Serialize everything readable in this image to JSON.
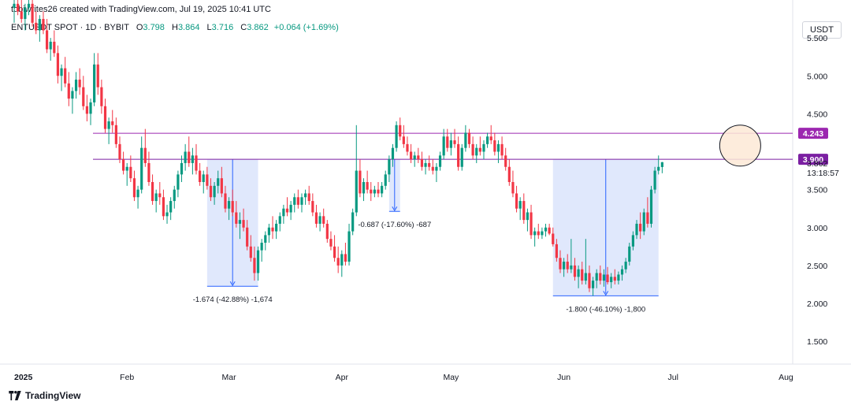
{
  "header": {
    "credit": "tobiwrites26 created with TradingView.com, Jul 19, 2025 10:41 UTC",
    "symbol": "ENTUSDT SPOT · 1D · BYBIT",
    "open_label": "O",
    "open": "3.798",
    "high_label": "H",
    "high": "3.864",
    "low_label": "L",
    "low": "3.716",
    "close_label": "C",
    "close": "3.862",
    "change": "+0.064 (+1.69%)",
    "currency": "USDT"
  },
  "brand": {
    "name": "TradingView",
    "logo_icon": "tradingview-logo-icon"
  },
  "colors": {
    "up": "#089981",
    "down": "#f23645",
    "level": "#9c27b0",
    "range_fill": "#dbe4fb",
    "range_line": "#2962ff",
    "highlight": "#fde9d6"
  },
  "chart_data": {
    "type": "candlestick",
    "ylim": [
      1.2,
      6.0
    ],
    "yticks": [
      "5.500",
      "5.000",
      "4.500",
      "3.500",
      "3.000",
      "2.500",
      "2.000",
      "1.500"
    ],
    "xticks": [
      "2025",
      "Feb",
      "Mar",
      "Apr",
      "May",
      "Jun",
      "Jul",
      "Aug"
    ],
    "horizontal_levels": [
      {
        "value": 4.243,
        "label": "4.243"
      },
      {
        "value": 3.9,
        "label": "3.900"
      }
    ],
    "last_price": {
      "value": 3.862,
      "label": "3.862",
      "countdown": "13:18:57"
    },
    "measurements": [
      {
        "label": "-1.674 (-42.88%) -1,674",
        "from": 3.9,
        "to": 2.226,
        "start": "Feb 23",
        "end": "Mar 9"
      },
      {
        "label": "-0.687 (-17.60%) -687",
        "from": 3.9,
        "to": 3.213,
        "start": "Apr 14",
        "end": "Apr 17"
      },
      {
        "label": "-1.800 (-46.10%) -1,800",
        "from": 3.9,
        "to": 2.1,
        "start": "May 29",
        "end": "Jun 27"
      }
    ],
    "highlight_circle": {
      "date": "Jul 19",
      "value": 4.08
    },
    "candles_ohlc": [
      [
        5.9,
        6.05,
        5.7,
        5.95
      ],
      [
        5.95,
        6.1,
        5.8,
        5.85
      ],
      [
        5.85,
        6.0,
        5.7,
        5.75
      ],
      [
        5.75,
        5.95,
        5.6,
        5.9
      ],
      [
        5.9,
        6.05,
        5.8,
        5.95
      ],
      [
        5.95,
        6.05,
        5.65,
        5.7
      ],
      [
        5.7,
        5.85,
        5.55,
        5.6
      ],
      [
        5.6,
        5.8,
        5.45,
        5.75
      ],
      [
        5.75,
        5.85,
        5.55,
        5.6
      ],
      [
        5.6,
        5.75,
        5.3,
        5.35
      ],
      [
        5.35,
        5.5,
        5.2,
        5.45
      ],
      [
        5.45,
        5.6,
        5.25,
        5.3
      ],
      [
        5.3,
        5.4,
        4.9,
        5.0
      ],
      [
        5.0,
        5.15,
        4.8,
        5.1
      ],
      [
        5.1,
        5.25,
        4.85,
        4.9
      ],
      [
        4.9,
        5.05,
        4.6,
        4.7
      ],
      [
        4.7,
        4.85,
        4.5,
        4.8
      ],
      [
        4.8,
        5.05,
        4.7,
        4.95
      ],
      [
        4.95,
        5.1,
        4.75,
        4.85
      ],
      [
        4.85,
        5.0,
        4.55,
        4.6
      ],
      [
        4.6,
        4.75,
        4.4,
        4.5
      ],
      [
        4.5,
        4.7,
        4.35,
        4.65
      ],
      [
        4.65,
        5.3,
        4.6,
        5.15
      ],
      [
        5.15,
        5.3,
        4.75,
        4.85
      ],
      [
        4.85,
        4.95,
        4.5,
        4.6
      ],
      [
        4.6,
        4.7,
        4.25,
        4.3
      ],
      [
        4.3,
        4.45,
        4.1,
        4.4
      ],
      [
        4.4,
        4.55,
        4.25,
        4.35
      ],
      [
        4.35,
        4.45,
        4.05,
        4.1
      ],
      [
        4.1,
        4.2,
        3.85,
        3.9
      ],
      [
        3.9,
        4.0,
        3.7,
        3.75
      ],
      [
        3.75,
        3.85,
        3.55,
        3.8
      ],
      [
        3.8,
        3.95,
        3.6,
        3.65
      ],
      [
        3.65,
        3.75,
        3.35,
        3.4
      ],
      [
        3.4,
        3.55,
        3.25,
        3.5
      ],
      [
        3.5,
        4.2,
        3.45,
        4.05
      ],
      [
        4.05,
        4.3,
        3.8,
        3.85
      ],
      [
        3.85,
        4.0,
        3.55,
        3.6
      ],
      [
        3.6,
        3.7,
        3.3,
        3.35
      ],
      [
        3.35,
        3.5,
        3.2,
        3.45
      ],
      [
        3.45,
        3.6,
        3.3,
        3.4
      ],
      [
        3.4,
        3.5,
        3.1,
        3.15
      ],
      [
        3.15,
        3.3,
        3.05,
        3.2
      ],
      [
        3.2,
        3.4,
        3.1,
        3.35
      ],
      [
        3.35,
        3.55,
        3.25,
        3.5
      ],
      [
        3.5,
        3.75,
        3.4,
        3.7
      ],
      [
        3.7,
        3.95,
        3.6,
        3.85
      ],
      [
        3.85,
        4.1,
        3.75,
        4.0
      ],
      [
        4.0,
        4.2,
        3.8,
        3.85
      ],
      [
        3.85,
        4.05,
        3.7,
        3.95
      ],
      [
        3.95,
        4.1,
        3.7,
        3.75
      ],
      [
        3.75,
        3.85,
        3.55,
        3.6
      ],
      [
        3.6,
        3.75,
        3.45,
        3.7
      ],
      [
        3.7,
        3.8,
        3.5,
        3.55
      ],
      [
        3.55,
        3.65,
        3.35,
        3.4
      ],
      [
        3.4,
        3.6,
        3.3,
        3.55
      ],
      [
        3.55,
        3.75,
        3.45,
        3.65
      ],
      [
        3.65,
        3.8,
        3.4,
        3.45
      ],
      [
        3.45,
        3.55,
        3.2,
        3.25
      ],
      [
        3.25,
        3.4,
        3.1,
        3.35
      ],
      [
        3.35,
        3.5,
        3.15,
        3.2
      ],
      [
        3.2,
        3.35,
        3.0,
        3.05
      ],
      [
        3.05,
        3.2,
        2.85,
        3.1
      ],
      [
        3.1,
        3.25,
        2.95,
        3.0
      ],
      [
        3.0,
        3.1,
        2.7,
        2.75
      ],
      [
        2.75,
        2.9,
        2.55,
        2.6
      ],
      [
        2.6,
        2.75,
        2.3,
        2.4
      ],
      [
        2.4,
        2.75,
        2.3,
        2.7
      ],
      [
        2.7,
        2.85,
        2.55,
        2.8
      ],
      [
        2.8,
        2.95,
        2.7,
        2.9
      ],
      [
        2.9,
        3.05,
        2.8,
        3.0
      ],
      [
        3.0,
        3.15,
        2.85,
        2.95
      ],
      [
        2.95,
        3.1,
        2.85,
        3.05
      ],
      [
        3.05,
        3.2,
        2.95,
        3.15
      ],
      [
        3.15,
        3.3,
        3.05,
        3.25
      ],
      [
        3.25,
        3.4,
        3.15,
        3.2
      ],
      [
        3.2,
        3.35,
        3.1,
        3.3
      ],
      [
        3.3,
        3.45,
        3.2,
        3.4
      ],
      [
        3.4,
        3.5,
        3.25,
        3.3
      ],
      [
        3.3,
        3.45,
        3.2,
        3.4
      ],
      [
        3.4,
        3.5,
        3.3,
        3.45
      ],
      [
        3.45,
        3.55,
        3.3,
        3.35
      ],
      [
        3.35,
        3.45,
        3.15,
        3.2
      ],
      [
        3.2,
        3.3,
        3.0,
        3.05
      ],
      [
        3.05,
        3.2,
        2.95,
        3.15
      ],
      [
        3.15,
        3.25,
        3.0,
        3.05
      ],
      [
        3.05,
        3.1,
        2.8,
        2.85
      ],
      [
        2.85,
        2.95,
        2.7,
        2.75
      ],
      [
        2.75,
        2.9,
        2.55,
        2.6
      ],
      [
        2.6,
        2.75,
        2.4,
        2.5
      ],
      [
        2.5,
        2.7,
        2.35,
        2.65
      ],
      [
        2.65,
        2.8,
        2.5,
        2.55
      ],
      [
        2.55,
        3.05,
        2.5,
        2.95
      ],
      [
        2.95,
        3.25,
        2.9,
        3.2
      ],
      [
        3.2,
        4.35,
        3.15,
        3.75
      ],
      [
        3.75,
        3.9,
        3.4,
        3.45
      ],
      [
        3.45,
        3.65,
        3.35,
        3.6
      ],
      [
        3.6,
        3.75,
        3.45,
        3.5
      ],
      [
        3.5,
        3.6,
        3.35,
        3.45
      ],
      [
        3.45,
        3.55,
        3.4,
        3.5
      ],
      [
        3.5,
        3.6,
        3.4,
        3.45
      ],
      [
        3.45,
        3.6,
        3.4,
        3.55
      ],
      [
        3.55,
        3.75,
        3.5,
        3.7
      ],
      [
        3.7,
        3.95,
        3.6,
        3.9
      ],
      [
        3.9,
        4.1,
        3.8,
        4.05
      ],
      [
        4.05,
        4.4,
        4.0,
        4.35
      ],
      [
        4.35,
        4.45,
        4.15,
        4.2
      ],
      [
        4.2,
        4.35,
        4.05,
        4.1
      ],
      [
        4.1,
        4.2,
        3.95,
        4.0
      ],
      [
        4.0,
        4.1,
        3.85,
        3.9
      ],
      [
        3.9,
        4.0,
        3.8,
        3.95
      ],
      [
        3.95,
        4.05,
        3.85,
        3.9
      ],
      [
        3.9,
        4.0,
        3.75,
        3.8
      ],
      [
        3.8,
        3.9,
        3.7,
        3.85
      ],
      [
        3.85,
        3.95,
        3.75,
        3.8
      ],
      [
        3.8,
        3.9,
        3.7,
        3.75
      ],
      [
        3.75,
        3.85,
        3.6,
        3.8
      ],
      [
        3.8,
        4.0,
        3.75,
        3.95
      ],
      [
        3.95,
        4.3,
        3.9,
        4.2
      ],
      [
        4.2,
        4.3,
        4.0,
        4.05
      ],
      [
        4.05,
        4.25,
        3.95,
        4.15
      ],
      [
        4.15,
        4.3,
        4.05,
        4.1
      ],
      [
        4.1,
        4.2,
        3.75,
        3.8
      ],
      [
        3.8,
        4.1,
        3.75,
        4.05
      ],
      [
        4.05,
        4.35,
        4.0,
        4.25
      ],
      [
        4.25,
        4.3,
        4.05,
        4.1
      ],
      [
        4.1,
        4.2,
        3.9,
        3.95
      ],
      [
        3.95,
        4.1,
        3.85,
        4.05
      ],
      [
        4.05,
        4.2,
        3.95,
        4.0
      ],
      [
        4.0,
        4.15,
        3.9,
        4.1
      ],
      [
        4.1,
        4.25,
        4.05,
        4.2
      ],
      [
        4.2,
        4.35,
        4.1,
        4.15
      ],
      [
        4.15,
        4.25,
        3.95,
        4.0
      ],
      [
        4.0,
        4.15,
        3.85,
        4.1
      ],
      [
        4.1,
        4.2,
        3.9,
        3.95
      ],
      [
        3.95,
        4.05,
        3.75,
        3.8
      ],
      [
        3.8,
        3.9,
        3.55,
        3.6
      ],
      [
        3.6,
        3.75,
        3.4,
        3.45
      ],
      [
        3.45,
        3.55,
        3.2,
        3.25
      ],
      [
        3.25,
        3.4,
        3.1,
        3.35
      ],
      [
        3.35,
        3.45,
        3.05,
        3.1
      ],
      [
        3.1,
        3.25,
        2.95,
        3.2
      ],
      [
        3.2,
        3.3,
        2.85,
        2.9
      ],
      [
        2.9,
        3.0,
        2.75,
        2.95
      ],
      [
        2.95,
        3.05,
        2.85,
        2.9
      ],
      [
        2.9,
        3.0,
        2.85,
        2.95
      ],
      [
        2.95,
        3.05,
        2.88,
        3.0
      ],
      [
        3.0,
        3.05,
        2.9,
        2.92
      ],
      [
        2.92,
        3.0,
        2.75,
        2.78
      ],
      [
        2.78,
        2.85,
        2.55,
        2.6
      ],
      [
        2.6,
        2.7,
        2.4,
        2.45
      ],
      [
        2.45,
        2.6,
        2.35,
        2.55
      ],
      [
        2.55,
        2.65,
        2.4,
        2.45
      ],
      [
        2.45,
        2.85,
        2.4,
        2.5
      ],
      [
        2.5,
        2.6,
        2.3,
        2.35
      ],
      [
        2.35,
        2.5,
        2.2,
        2.45
      ],
      [
        2.45,
        2.55,
        2.25,
        2.3
      ],
      [
        2.3,
        2.85,
        2.25,
        2.4
      ],
      [
        2.4,
        2.5,
        2.15,
        2.2
      ],
      [
        2.2,
        2.35,
        2.1,
        2.3
      ],
      [
        2.3,
        2.45,
        2.2,
        2.4
      ],
      [
        2.4,
        2.5,
        2.25,
        2.3
      ],
      [
        2.3,
        2.45,
        2.22,
        2.38
      ],
      [
        2.38,
        2.48,
        2.25,
        2.28
      ],
      [
        2.28,
        2.4,
        2.2,
        2.35
      ],
      [
        2.35,
        2.45,
        2.25,
        2.3
      ],
      [
        2.3,
        2.42,
        2.25,
        2.38
      ],
      [
        2.38,
        2.5,
        2.3,
        2.45
      ],
      [
        2.45,
        2.6,
        2.4,
        2.55
      ],
      [
        2.55,
        2.8,
        2.5,
        2.75
      ],
      [
        2.75,
        2.95,
        2.7,
        2.9
      ],
      [
        2.9,
        3.1,
        2.85,
        3.05
      ],
      [
        3.05,
        3.2,
        2.85,
        2.95
      ],
      [
        2.95,
        3.25,
        2.9,
        3.2
      ],
      [
        3.2,
        3.4,
        3.0,
        3.05
      ],
      [
        3.05,
        3.55,
        3.0,
        3.5
      ],
      [
        3.5,
        3.8,
        3.45,
        3.75
      ],
      [
        3.75,
        3.95,
        3.7,
        3.8
      ],
      [
        3.798,
        3.864,
        3.716,
        3.862
      ]
    ]
  }
}
